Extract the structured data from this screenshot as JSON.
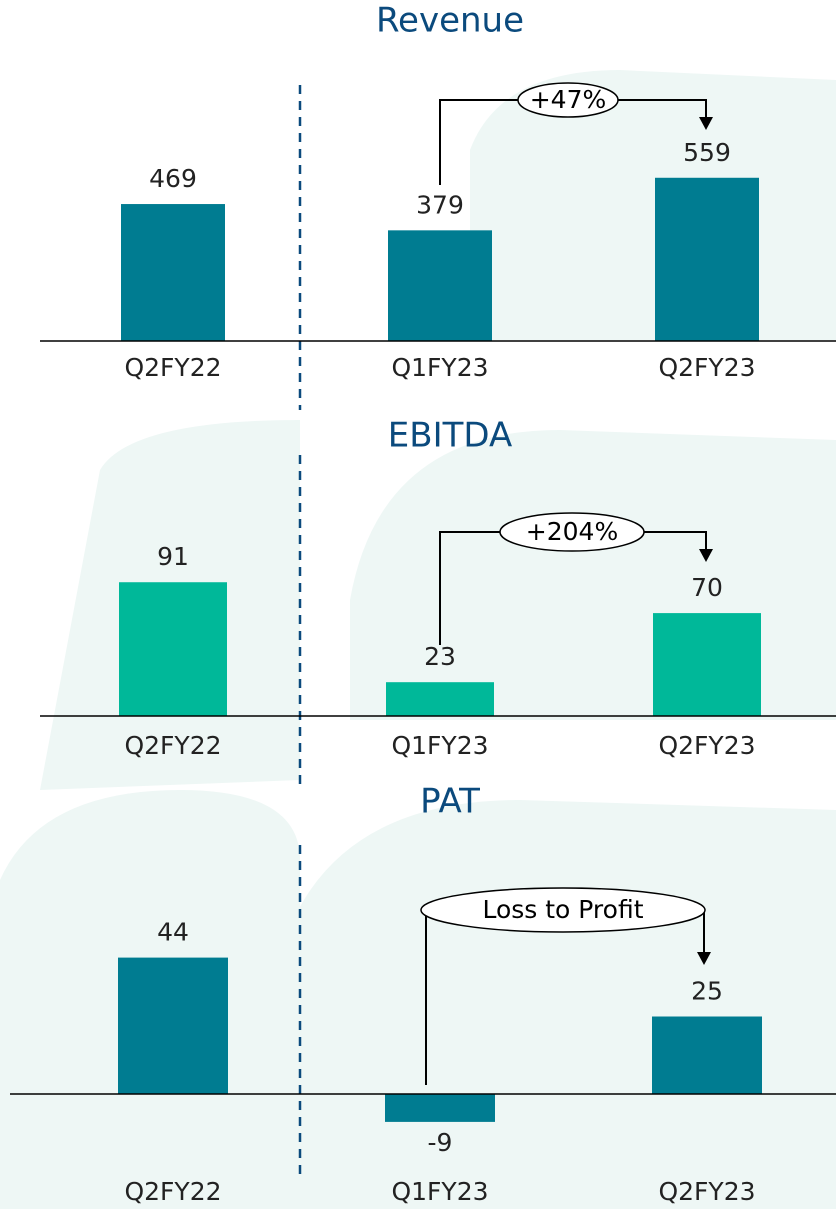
{
  "chart_data": [
    {
      "type": "bar",
      "title": "Revenue",
      "categories": [
        "Q2FY22",
        "Q1FY23",
        "Q2FY23"
      ],
      "values": [
        469,
        379,
        559
      ],
      "color": "#007c91",
      "ylim": [
        0,
        1000
      ],
      "annotation": "+47%"
    },
    {
      "type": "bar",
      "title": "EBITDA",
      "categories": [
        "Q2FY22",
        "Q1FY23",
        "Q2FY23"
      ],
      "values": [
        91,
        23,
        70
      ],
      "color": "#00b899",
      "ylim": [
        0,
        200
      ],
      "annotation": "+204%"
    },
    {
      "type": "bar",
      "title": "PAT",
      "categories": [
        "Q2FY22",
        "Q1FY23",
        "Q2FY23"
      ],
      "values": [
        44,
        -9,
        25
      ],
      "color": "#007c91",
      "ylim": [
        -20,
        80
      ],
      "annotation": "Loss to Profit"
    }
  ]
}
